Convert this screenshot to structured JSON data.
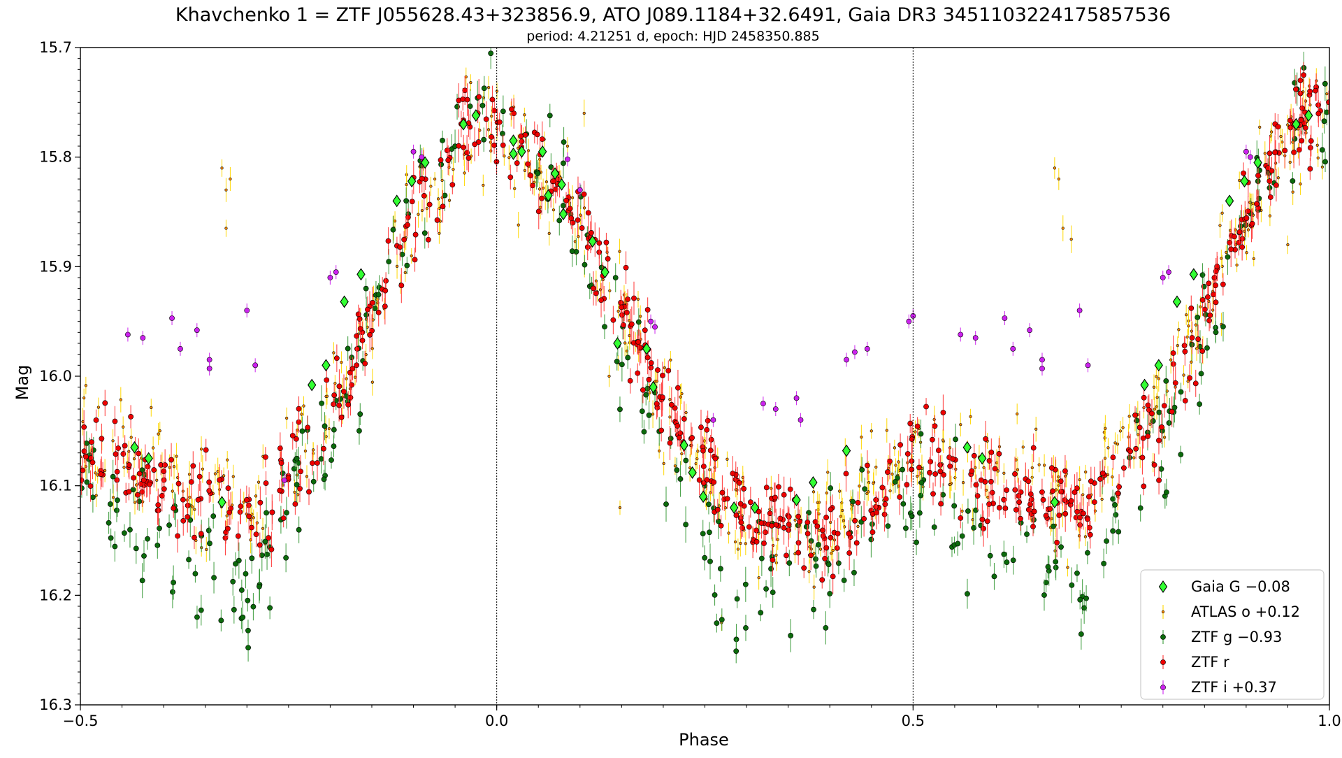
{
  "chart_data": {
    "type": "scatter",
    "title": "Khavchenko 1 = ZTF J055628.43+323856.9, ATO J089.1184+32.6491, Gaia DR3 3451103224175857536",
    "subtitle": "period: 4.21251 d, epoch: HJD 2458350.885",
    "xlabel": "Phase",
    "ylabel": "Mag",
    "xlim": [
      -0.5,
      1.0
    ],
    "ylim": [
      16.3,
      15.7
    ],
    "y_inverted": true,
    "x_ticks": [
      -0.5,
      0.0,
      0.5,
      1.0
    ],
    "x_tick_labels": [
      "−0.5",
      "0.0",
      "0.5",
      "1.0"
    ],
    "y_ticks": [
      15.7,
      15.8,
      15.9,
      16.0,
      16.1,
      16.2,
      16.3
    ],
    "y_tick_labels": [
      "15.7",
      "15.8",
      "15.9",
      "16.0",
      "16.1",
      "16.2",
      "16.3"
    ],
    "vlines": [
      0.0,
      0.5
    ],
    "legend_position": "lower-right",
    "grid": false,
    "series": [
      {
        "name": "Gaia G −0.08",
        "color": "#33ff33",
        "marker": "diamond",
        "points": [
          [
            -0.435,
            16.065
          ],
          [
            -0.418,
            16.075
          ],
          [
            -0.33,
            16.115
          ],
          [
            -0.222,
            16.008
          ],
          [
            -0.205,
            15.99
          ],
          [
            -0.183,
            15.932
          ],
          [
            -0.163,
            15.907
          ],
          [
            -0.12,
            15.84
          ],
          [
            -0.102,
            15.822
          ],
          [
            -0.086,
            15.805
          ],
          [
            -0.04,
            15.77
          ],
          [
            -0.025,
            15.762
          ],
          [
            0.02,
            15.785
          ],
          [
            0.02,
            15.797
          ],
          [
            0.03,
            15.795
          ],
          [
            0.055,
            15.795
          ],
          [
            0.062,
            15.835
          ],
          [
            0.07,
            15.815
          ],
          [
            0.078,
            15.825
          ],
          [
            0.08,
            15.852
          ],
          [
            0.115,
            15.877
          ],
          [
            0.13,
            15.905
          ],
          [
            0.145,
            15.97
          ],
          [
            0.18,
            15.975
          ],
          [
            0.188,
            16.01
          ],
          [
            0.225,
            16.063
          ],
          [
            0.235,
            16.088
          ],
          [
            0.248,
            16.11
          ],
          [
            0.285,
            16.12
          ],
          [
            0.31,
            16.12
          ],
          [
            0.36,
            16.113
          ],
          [
            0.38,
            16.097
          ],
          [
            0.42,
            16.068
          ],
          [
            0.565,
            16.065
          ],
          [
            0.583,
            16.075
          ],
          [
            0.67,
            16.115
          ],
          [
            0.778,
            16.008
          ],
          [
            0.795,
            15.99
          ],
          [
            0.817,
            15.932
          ],
          [
            0.837,
            15.907
          ],
          [
            0.88,
            15.84
          ],
          [
            0.898,
            15.822
          ],
          [
            0.914,
            15.805
          ],
          [
            0.96,
            15.77
          ],
          [
            0.975,
            15.762
          ]
        ]
      },
      {
        "name": "ATLAS o +0.12",
        "color": "#ff8c00",
        "marker": "small-dot",
        "error_color": "#ffd700",
        "scatter": 0.025,
        "count": 520,
        "outliers": [
          [
            -0.33,
            15.81
          ],
          [
            -0.325,
            15.83
          ],
          [
            -0.32,
            15.82
          ],
          [
            -0.325,
            15.865
          ],
          [
            0.04,
            15.815
          ],
          [
            0.045,
            15.823
          ],
          [
            0.085,
            15.79
          ],
          [
            0.105,
            15.76
          ],
          [
            0.135,
            16.0
          ],
          [
            0.148,
            16.12
          ],
          [
            0.27,
            16.225
          ],
          [
            0.67,
            15.81
          ],
          [
            0.675,
            15.82
          ],
          [
            0.68,
            15.865
          ],
          [
            0.69,
            15.875
          ],
          [
            0.95,
            15.88
          ],
          [
            0.45,
            16.05
          ]
        ],
        "curve": [
          [
            -0.5,
            16.06
          ],
          [
            -0.4,
            16.09
          ],
          [
            -0.3,
            16.12
          ],
          [
            -0.2,
            16.03
          ],
          [
            -0.1,
            15.86
          ],
          [
            -0.03,
            15.76
          ],
          [
            0.02,
            15.79
          ],
          [
            0.1,
            15.86
          ],
          [
            0.2,
            16.02
          ],
          [
            0.3,
            16.14
          ],
          [
            0.4,
            16.14
          ],
          [
            0.5,
            16.06
          ],
          [
            0.6,
            16.09
          ],
          [
            0.7,
            16.12
          ],
          [
            0.8,
            16.03
          ],
          [
            0.9,
            15.86
          ],
          [
            0.97,
            15.76
          ],
          [
            1.0,
            15.77
          ]
        ]
      },
      {
        "name": "ZTF g −0.93",
        "color": "#0b6a0b",
        "marker": "dot",
        "error_color": "#3a9a3a",
        "scatter": 0.03,
        "count": 330,
        "curve": [
          [
            -0.5,
            16.1
          ],
          [
            -0.4,
            16.15
          ],
          [
            -0.3,
            16.2
          ],
          [
            -0.2,
            16.05
          ],
          [
            -0.1,
            15.86
          ],
          [
            -0.03,
            15.75
          ],
          [
            0.02,
            15.78
          ],
          [
            0.1,
            15.87
          ],
          [
            0.2,
            16.06
          ],
          [
            0.3,
            16.2
          ],
          [
            0.4,
            16.16
          ],
          [
            0.5,
            16.1
          ],
          [
            0.6,
            16.15
          ],
          [
            0.7,
            16.2
          ],
          [
            0.8,
            16.05
          ],
          [
            0.9,
            15.86
          ],
          [
            0.97,
            15.75
          ],
          [
            1.0,
            15.76
          ]
        ]
      },
      {
        "name": "ZTF r",
        "color": "#ee0000",
        "marker": "dot",
        "error_color": "#ff3333",
        "scatter": 0.02,
        "count": 640,
        "curve": [
          [
            -0.5,
            16.07
          ],
          [
            -0.4,
            16.1
          ],
          [
            -0.3,
            16.13
          ],
          [
            -0.2,
            16.04
          ],
          [
            -0.1,
            15.85
          ],
          [
            -0.03,
            15.76
          ],
          [
            0.02,
            15.78
          ],
          [
            0.1,
            15.86
          ],
          [
            0.2,
            16.02
          ],
          [
            0.3,
            16.13
          ],
          [
            0.42,
            16.15
          ],
          [
            0.5,
            16.07
          ],
          [
            0.6,
            16.1
          ],
          [
            0.7,
            16.13
          ],
          [
            0.8,
            16.04
          ],
          [
            0.9,
            15.85
          ],
          [
            0.97,
            15.76
          ],
          [
            1.0,
            15.75
          ]
        ]
      },
      {
        "name": "ZTF i +0.37",
        "color": "#cc22ee",
        "marker": "dot",
        "error_color": "#cc22ee",
        "points": [
          [
            -0.443,
            15.962
          ],
          [
            -0.425,
            15.965
          ],
          [
            -0.39,
            15.947
          ],
          [
            -0.38,
            15.975
          ],
          [
            -0.36,
            15.958
          ],
          [
            -0.345,
            15.985
          ],
          [
            -0.345,
            15.993
          ],
          [
            -0.3,
            15.94
          ],
          [
            -0.29,
            15.99
          ],
          [
            -0.255,
            16.095
          ],
          [
            -0.2,
            15.91
          ],
          [
            -0.193,
            15.905
          ],
          [
            -0.09,
            15.8
          ],
          [
            -0.1,
            15.795
          ],
          [
            0.085,
            15.802
          ],
          [
            0.1,
            15.83
          ],
          [
            0.185,
            15.95
          ],
          [
            0.19,
            15.955
          ],
          [
            0.26,
            16.04
          ],
          [
            0.32,
            16.025
          ],
          [
            0.335,
            16.03
          ],
          [
            0.36,
            16.02
          ],
          [
            0.365,
            16.04
          ],
          [
            0.42,
            15.985
          ],
          [
            0.43,
            15.978
          ],
          [
            0.445,
            15.975
          ],
          [
            0.495,
            15.95
          ],
          [
            0.5,
            15.945
          ],
          [
            0.557,
            15.962
          ],
          [
            0.575,
            15.965
          ],
          [
            0.61,
            15.947
          ],
          [
            0.62,
            15.975
          ],
          [
            0.64,
            15.958
          ],
          [
            0.655,
            15.985
          ],
          [
            0.655,
            15.993
          ],
          [
            0.7,
            15.94
          ],
          [
            0.71,
            15.99
          ],
          [
            0.8,
            15.91
          ],
          [
            0.807,
            15.905
          ],
          [
            0.9,
            15.795
          ],
          [
            0.905,
            15.8
          ]
        ]
      }
    ]
  }
}
